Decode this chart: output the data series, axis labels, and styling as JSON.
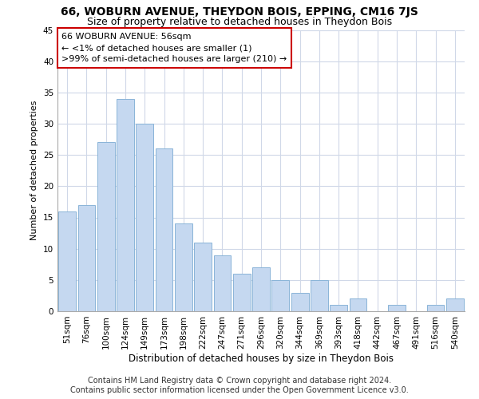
{
  "title": "66, WOBURN AVENUE, THEYDON BOIS, EPPING, CM16 7JS",
  "subtitle": "Size of property relative to detached houses in Theydon Bois",
  "xlabel": "Distribution of detached houses by size in Theydon Bois",
  "ylabel": "Number of detached properties",
  "footnote1": "Contains HM Land Registry data © Crown copyright and database right 2024.",
  "footnote2": "Contains public sector information licensed under the Open Government Licence v3.0.",
  "annotation_line1": "66 WOBURN AVENUE: 56sqm",
  "annotation_line2": "← <1% of detached houses are smaller (1)",
  "annotation_line3": ">99% of semi-detached houses are larger (210) →",
  "categories": [
    "51sqm",
    "76sqm",
    "100sqm",
    "124sqm",
    "149sqm",
    "173sqm",
    "198sqm",
    "222sqm",
    "247sqm",
    "271sqm",
    "296sqm",
    "320sqm",
    "344sqm",
    "369sqm",
    "393sqm",
    "418sqm",
    "442sqm",
    "467sqm",
    "491sqm",
    "516sqm",
    "540sqm"
  ],
  "values": [
    16,
    17,
    27,
    34,
    30,
    26,
    14,
    11,
    9,
    6,
    7,
    5,
    3,
    5,
    1,
    2,
    0,
    1,
    0,
    1,
    2
  ],
  "bar_color": "#c5d8f0",
  "bar_edge_color": "#8ab4d8",
  "ylim": [
    0,
    45
  ],
  "yticks": [
    0,
    5,
    10,
    15,
    20,
    25,
    30,
    35,
    40,
    45
  ],
  "grid_color": "#d0d8e8",
  "title_fontsize": 10,
  "subtitle_fontsize": 9,
  "xlabel_fontsize": 8.5,
  "ylabel_fontsize": 8,
  "annotation_fontsize": 8,
  "footnote_fontsize": 7,
  "tick_fontsize": 7.5,
  "annotation_box_color": "#cc0000",
  "fig_bg_color": "#ffffff"
}
